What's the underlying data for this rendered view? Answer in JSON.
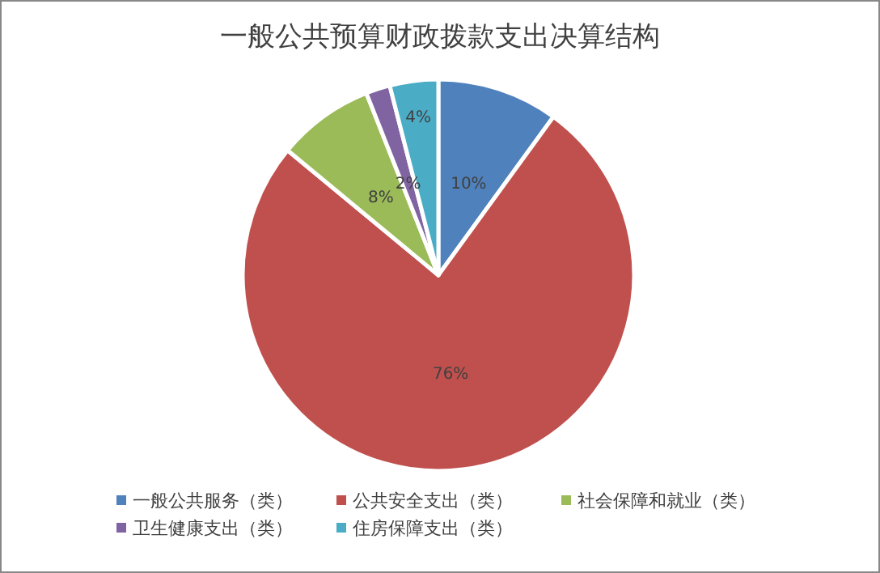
{
  "chart_data": {
    "type": "pie",
    "title": "一般公共预算财政拨款支出决算结构",
    "categories": [
      "一般公共服务（类）",
      "公共安全支出（类）",
      "社会保障和就业（类）",
      "卫生健康支出（类）",
      "住房保障支出（类）"
    ],
    "values": [
      10,
      76,
      8,
      2,
      4
    ],
    "colors": [
      "#4f81bd",
      "#c0504d",
      "#9bbb59",
      "#8064a2",
      "#4bacc6"
    ],
    "value_labels": [
      "10%",
      "76%",
      "8%",
      "2%",
      "4%"
    ],
    "legend": "bottom"
  }
}
